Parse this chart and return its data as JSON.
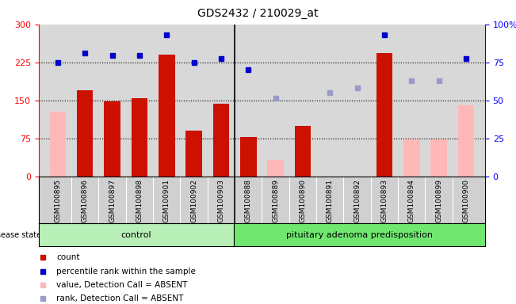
{
  "title": "GDS2432 / 210029_at",
  "samples": [
    "GSM100895",
    "GSM100896",
    "GSM100897",
    "GSM100898",
    "GSM100901",
    "GSM100902",
    "GSM100903",
    "GSM100888",
    "GSM100889",
    "GSM100890",
    "GSM100891",
    "GSM100892",
    "GSM100893",
    "GSM100894",
    "GSM100899",
    "GSM100900"
  ],
  "groups": [
    "control",
    "control",
    "control",
    "control",
    "control",
    "control",
    "control",
    "pituitary adenoma predisposition",
    "pituitary adenoma predisposition",
    "pituitary adenoma predisposition",
    "pituitary adenoma predisposition",
    "pituitary adenoma predisposition",
    "pituitary adenoma predisposition",
    "pituitary adenoma predisposition",
    "pituitary adenoma predisposition",
    "pituitary adenoma predisposition"
  ],
  "count_values": [
    null,
    170,
    148,
    154,
    240,
    90,
    144,
    77,
    null,
    100,
    null,
    null,
    243,
    null,
    null,
    null
  ],
  "percentile_rank_left": [
    225,
    243,
    238,
    238,
    280,
    224,
    232,
    210,
    null,
    null,
    null,
    null,
    280,
    null,
    null,
    232
  ],
  "value_absent": [
    128,
    null,
    null,
    null,
    null,
    null,
    null,
    null,
    32,
    100,
    null,
    null,
    null,
    73,
    73,
    140
  ],
  "rank_absent_left": [
    null,
    null,
    null,
    null,
    null,
    null,
    null,
    null,
    155,
    null,
    165,
    175,
    null,
    188,
    188,
    null
  ],
  "ylim_left": [
    0,
    300
  ],
  "ylim_right": [
    0,
    100
  ],
  "yticks_left": [
    0,
    75,
    150,
    225,
    300
  ],
  "yticks_right": [
    0,
    25,
    50,
    75,
    100
  ],
  "control_count": 7,
  "plot_bg": "#d8d8d8",
  "xtick_bg": "#d0d0d0",
  "control_color": "#b8f0b8",
  "adenoma_color": "#70e870",
  "bar_red": "#cc1100",
  "bar_pink": "#ffb8b8",
  "dot_blue": "#0000cc",
  "dot_lightblue": "#9999cc",
  "legend_items": [
    "count",
    "percentile rank within the sample",
    "value, Detection Call = ABSENT",
    "rank, Detection Call = ABSENT"
  ]
}
